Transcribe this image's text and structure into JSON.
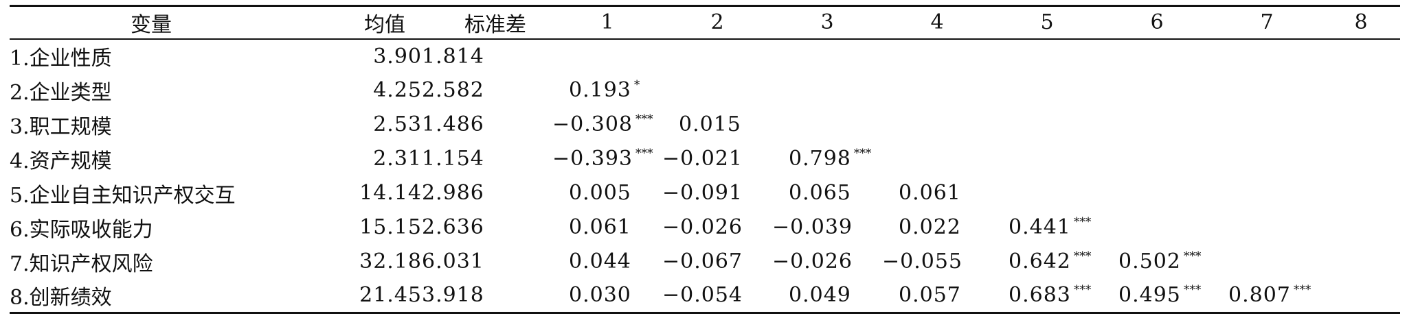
{
  "headers": [
    "变量",
    "均值",
    "标准差",
    "1",
    "2",
    "3",
    "4",
    "5",
    "6",
    "7",
    "8"
  ],
  "rows": [
    {
      "label": "1.企业性质",
      "mean": "3.90",
      "sd": "1.814",
      "c1": {
        "v": "",
        "s": ""
      },
      "c2": {
        "v": "",
        "s": ""
      },
      "c3": {
        "v": "",
        "s": ""
      },
      "c4": {
        "v": "",
        "s": ""
      },
      "c5": {
        "v": "",
        "s": ""
      },
      "c6": {
        "v": "",
        "s": ""
      },
      "c7": {
        "v": "",
        "s": ""
      }
    },
    {
      "label": "2.企业类型",
      "mean": "4.25",
      "sd": "2.582",
      "c1": {
        "v": "0.193",
        "s": "*"
      },
      "c2": {
        "v": "",
        "s": ""
      },
      "c3": {
        "v": "",
        "s": ""
      },
      "c4": {
        "v": "",
        "s": ""
      },
      "c5": {
        "v": "",
        "s": ""
      },
      "c6": {
        "v": "",
        "s": ""
      },
      "c7": {
        "v": "",
        "s": ""
      }
    },
    {
      "label": "3.职工规模",
      "mean": "2.53",
      "sd": "1.486",
      "c1": {
        "v": "−0.308",
        "s": "***"
      },
      "c2": {
        "v": "0.015",
        "s": ""
      },
      "c3": {
        "v": "",
        "s": ""
      },
      "c4": {
        "v": "",
        "s": ""
      },
      "c5": {
        "v": "",
        "s": ""
      },
      "c6": {
        "v": "",
        "s": ""
      },
      "c7": {
        "v": "",
        "s": ""
      }
    },
    {
      "label": "4.资产规模",
      "mean": "2.31",
      "sd": "1.154",
      "c1": {
        "v": "−0.393",
        "s": "***"
      },
      "c2": {
        "v": "−0.021",
        "s": ""
      },
      "c3": {
        "v": "0.798",
        "s": "***"
      },
      "c4": {
        "v": "",
        "s": ""
      },
      "c5": {
        "v": "",
        "s": ""
      },
      "c6": {
        "v": "",
        "s": ""
      },
      "c7": {
        "v": "",
        "s": ""
      }
    },
    {
      "label": "5.企业自主知识产权交互",
      "mean": "14.14",
      "sd": "2.986",
      "c1": {
        "v": "0.005",
        "s": ""
      },
      "c2": {
        "v": "−0.091",
        "s": ""
      },
      "c3": {
        "v": "0.065",
        "s": ""
      },
      "c4": {
        "v": "0.061",
        "s": ""
      },
      "c5": {
        "v": "",
        "s": ""
      },
      "c6": {
        "v": "",
        "s": ""
      },
      "c7": {
        "v": "",
        "s": ""
      }
    },
    {
      "label": "6.实际吸收能力",
      "mean": "15.15",
      "sd": "2.636",
      "c1": {
        "v": "0.061",
        "s": ""
      },
      "c2": {
        "v": "−0.026",
        "s": ""
      },
      "c3": {
        "v": "−0.039",
        "s": ""
      },
      "c4": {
        "v": "0.022",
        "s": ""
      },
      "c5": {
        "v": "0.441",
        "s": "***"
      },
      "c6": {
        "v": "",
        "s": ""
      },
      "c7": {
        "v": "",
        "s": ""
      }
    },
    {
      "label": "7.知识产权风险",
      "mean": "32.18",
      "sd": "6.031",
      "c1": {
        "v": "0.044",
        "s": ""
      },
      "c2": {
        "v": "−0.067",
        "s": ""
      },
      "c3": {
        "v": "−0.026",
        "s": ""
      },
      "c4": {
        "v": "−0.055",
        "s": ""
      },
      "c5": {
        "v": "0.642",
        "s": "***"
      },
      "c6": {
        "v": "0.502",
        "s": "***"
      },
      "c7": {
        "v": "",
        "s": ""
      }
    },
    {
      "label": "8.创新绩效",
      "mean": "21.45",
      "sd": "3.918",
      "c1": {
        "v": "0.030",
        "s": ""
      },
      "c2": {
        "v": "−0.054",
        "s": ""
      },
      "c3": {
        "v": "0.049",
        "s": ""
      },
      "c4": {
        "v": "0.057",
        "s": ""
      },
      "c5": {
        "v": "0.683",
        "s": "***"
      },
      "c6": {
        "v": "0.495",
        "s": "***"
      },
      "c7": {
        "v": "0.807",
        "s": "***"
      }
    }
  ]
}
